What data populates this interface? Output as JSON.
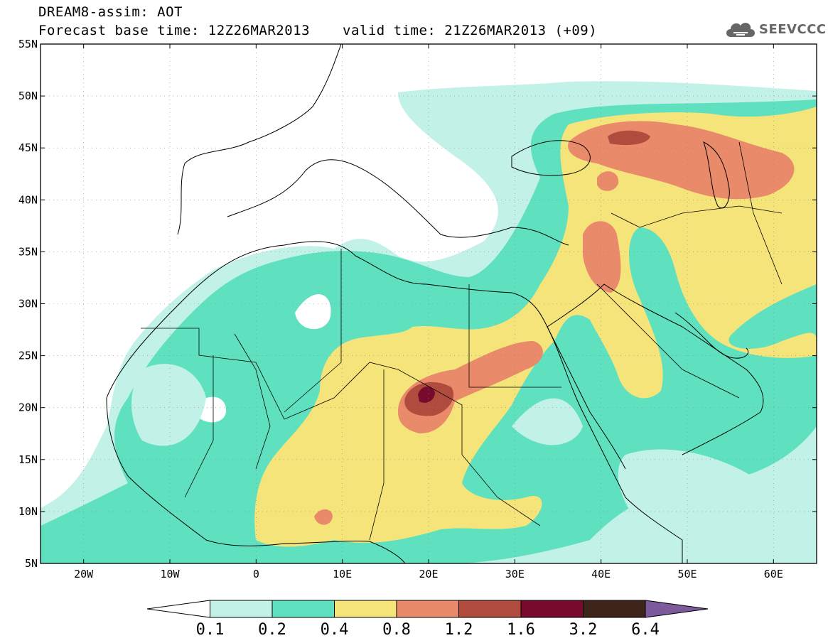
{
  "header": {
    "line1": "DREAM8-assim: AOT",
    "line2_base": "Forecast base time: 12Z26MAR2013",
    "line2_valid": "valid time: 21Z26MAR2013 (+09)"
  },
  "logo": {
    "text": "SEEVCCC",
    "icon": "cloud-icon"
  },
  "map": {
    "projection": "lat-lon",
    "lon_range": [
      -25,
      65
    ],
    "lat_range": [
      5,
      55
    ],
    "lat_ticks": [
      {
        "v": 55,
        "label": "55N"
      },
      {
        "v": 50,
        "label": "50N"
      },
      {
        "v": 45,
        "label": "45N"
      },
      {
        "v": 40,
        "label": "40N"
      },
      {
        "v": 35,
        "label": "35N"
      },
      {
        "v": 30,
        "label": "30N"
      },
      {
        "v": 25,
        "label": "25N"
      },
      {
        "v": 20,
        "label": "20N"
      },
      {
        "v": 15,
        "label": "15N"
      },
      {
        "v": 10,
        "label": "10N"
      },
      {
        "v": 5,
        "label": "5N"
      }
    ],
    "lon_ticks": [
      {
        "v": -20,
        "label": "20W"
      },
      {
        "v": -10,
        "label": "10W"
      },
      {
        "v": 0,
        "label": "0"
      },
      {
        "v": 10,
        "label": "10E"
      },
      {
        "v": 20,
        "label": "20E"
      },
      {
        "v": 30,
        "label": "30E"
      },
      {
        "v": 40,
        "label": "40E"
      },
      {
        "v": 50,
        "label": "50E"
      },
      {
        "v": 60,
        "label": "60E"
      }
    ],
    "grid": "dotted"
  },
  "colorbar": {
    "labels": [
      "0.1",
      "0.2",
      "0.4",
      "0.8",
      "1.2",
      "1.6",
      "3.2",
      "6.4"
    ],
    "colors": [
      "#ffffff",
      "#c2f1e8",
      "#5fe1c0",
      "#f5e47a",
      "#e98a6a",
      "#b04c3e",
      "#780a2c",
      "#3e2419",
      "#7c5a9c"
    ]
  }
}
